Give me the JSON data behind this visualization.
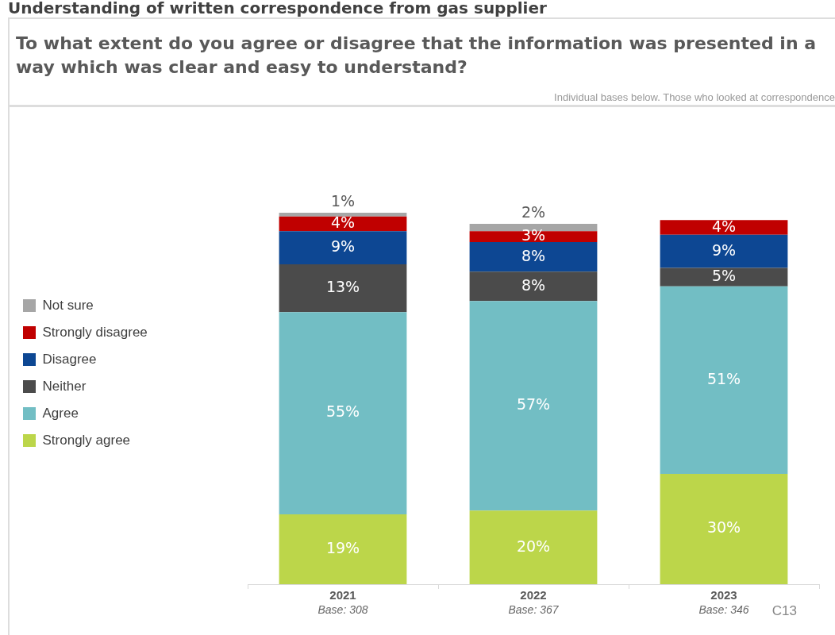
{
  "chart_data": {
    "type": "bar",
    "title": "To what extent do you agree or disagree that the information was presented in a way which was clear and easy to understand?",
    "subtitle": "Individual bases below. Those who looked at correspondence",
    "categories": [
      "2021",
      "2022",
      "2023"
    ],
    "stacked": true,
    "grid": false,
    "legend": "left",
    "tick_labels": "x",
    "series": [
      {
        "name": "Strongly agree",
        "color": "#bcd64a",
        "values": [
          19,
          20,
          30
        ],
        "value_labels": [
          "19%",
          "20%",
          "30%"
        ]
      },
      {
        "name": "Agree",
        "color": "#72bec4",
        "values": [
          55,
          57,
          51
        ],
        "value_labels": [
          "55%",
          "57%",
          "51%"
        ]
      },
      {
        "name": "Neither",
        "color": "#4b4b4b",
        "values": [
          13,
          8,
          5
        ],
        "value_labels": [
          "13%",
          "8%",
          "5%"
        ]
      },
      {
        "name": "Disagree",
        "color": "#0d4793",
        "values": [
          9,
          8,
          9
        ],
        "value_labels": [
          "9%",
          "8%",
          "9%"
        ]
      },
      {
        "name": "Strongly disagree",
        "color": "#c00000",
        "values": [
          4,
          3,
          4
        ],
        "value_labels": [
          "4%",
          "3%",
          "4%"
        ]
      },
      {
        "name": "Not sure",
        "color": "#a6a6a6",
        "values": [
          1,
          2,
          null
        ],
        "value_labels": [
          "1%",
          "2%",
          null
        ]
      }
    ],
    "annotations": [
      "Understanding of written correspondence from gas supplier",
      "Base: 308",
      "Base: 367",
      "Base: 346",
      "C13"
    ]
  }
}
